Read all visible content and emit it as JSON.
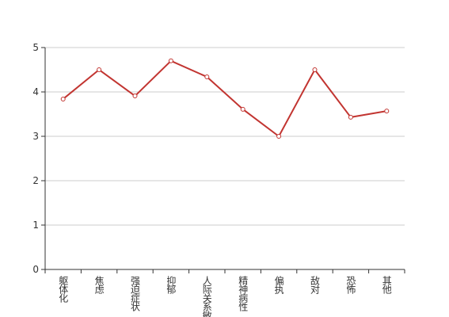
{
  "chart_data": {
    "type": "line",
    "categories": [
      "躯体化",
      "焦虑",
      "强迫症状",
      "抑郁",
      "人际关系敏感",
      "精神病性",
      "偏执",
      "敌对",
      "恐怖",
      "其他"
    ],
    "series": [
      {
        "color": "#c23531",
        "values": [
          3.84,
          4.5,
          3.91,
          4.7,
          4.34,
          3.61,
          3.0,
          4.5,
          3.43,
          3.57
        ]
      }
    ],
    "ylim": [
      0,
      5
    ],
    "yticks": [
      0,
      1,
      2,
      3,
      4,
      5
    ],
    "grid": true
  }
}
